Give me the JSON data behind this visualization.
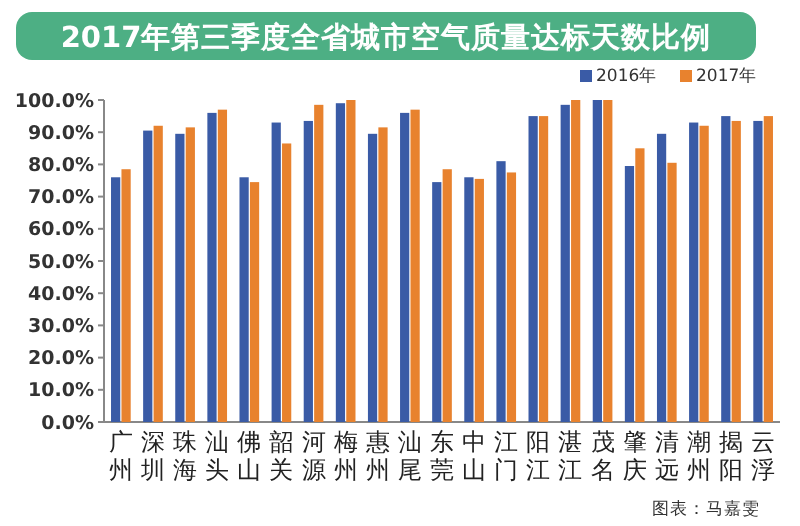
{
  "chart_data": {
    "type": "bar",
    "title": "2017年第三季度全省城市空气质量达标天数比例",
    "categories": [
      "广州",
      "深圳",
      "珠海",
      "汕头",
      "佛山",
      "韶关",
      "河源",
      "梅州",
      "惠州",
      "汕尾",
      "东莞",
      "中山",
      "江门",
      "阳江",
      "湛江",
      "茂名",
      "肇庆",
      "清远",
      "潮州",
      "揭阳",
      "云浮"
    ],
    "series": [
      {
        "name": "2016年",
        "color": "#3a5ba6",
        "values": [
          76,
          90.5,
          89.5,
          96,
          76,
          93,
          93.5,
          99,
          89.5,
          96,
          74.5,
          76,
          81,
          95,
          98.5,
          100,
          79.5,
          89.5,
          93,
          95,
          93.5
        ]
      },
      {
        "name": "2017年",
        "color": "#e8822e",
        "values": [
          78.5,
          92,
          91.5,
          97,
          74.5,
          86.5,
          98.5,
          100,
          91.5,
          97,
          78.5,
          75.5,
          77.5,
          95,
          100,
          100,
          85,
          80.5,
          92,
          93.5,
          95
        ]
      }
    ],
    "ylim": [
      0,
      100
    ],
    "yticks": [
      {
        "value": 0,
        "label": "0.0%"
      },
      {
        "value": 10,
        "label": "10.0%"
      },
      {
        "value": 20,
        "label": "20.0%"
      },
      {
        "value": 30,
        "label": "30.0%"
      },
      {
        "value": 40,
        "label": "40.0%"
      },
      {
        "value": 50,
        "label": "50.0%"
      },
      {
        "value": 60,
        "label": "60.0%"
      },
      {
        "value": 70,
        "label": "70.0%"
      },
      {
        "value": 80,
        "label": "80.0%"
      },
      {
        "value": 90,
        "label": "90.0%"
      },
      {
        "value": 100,
        "label": "100.0%"
      }
    ],
    "legend": "top right",
    "annotations": [
      "图表：马嘉雯"
    ]
  }
}
